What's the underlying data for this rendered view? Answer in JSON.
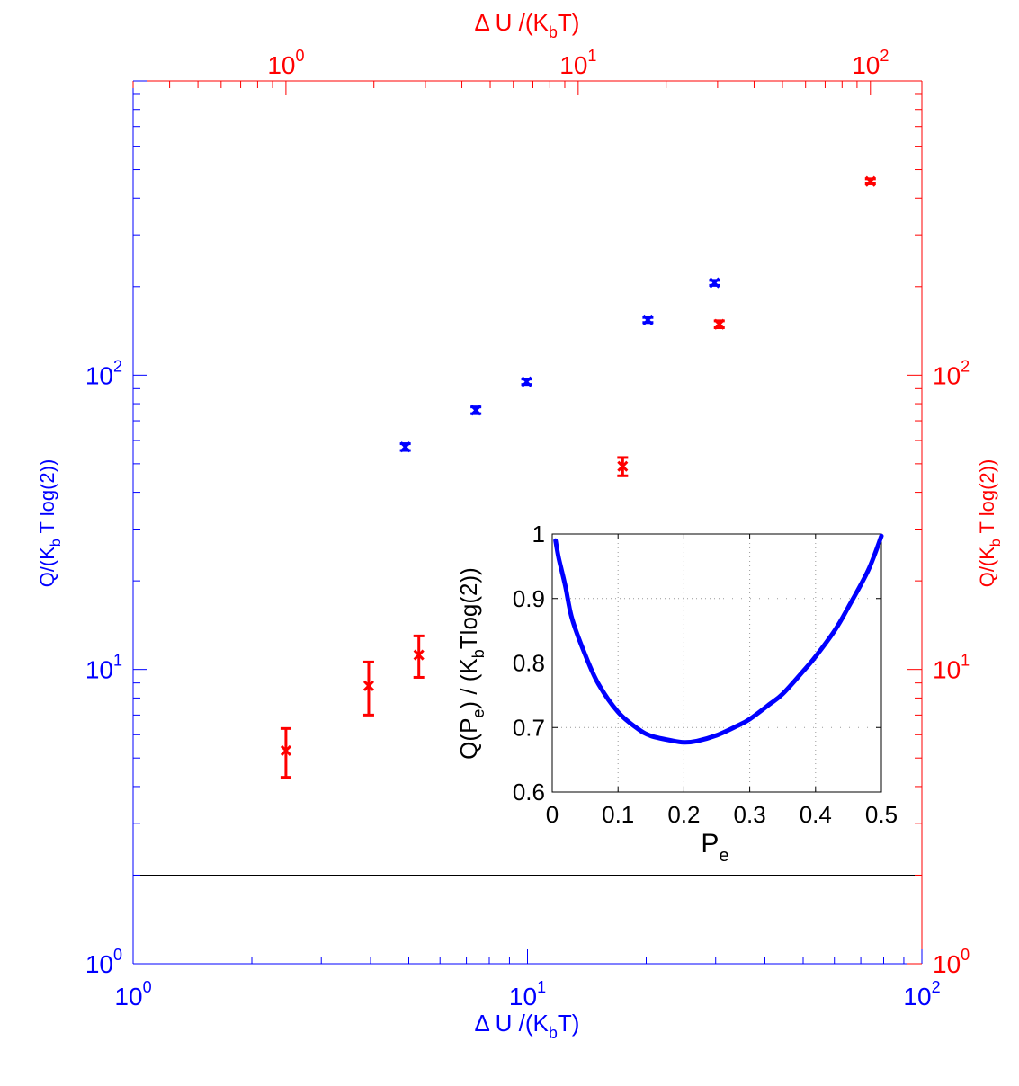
{
  "chart_data": [
    {
      "type": "scatter",
      "x_scale": "log",
      "y_scale": "log",
      "bottom_axis": {
        "label_base": "Δ U /(K",
        "label_sub": "b",
        "label_end": "T)",
        "range": [
          1,
          100
        ],
        "ticks": [
          {
            "base": "10",
            "exp": "0",
            "value": 1
          },
          {
            "base": "10",
            "exp": "1",
            "value": 10
          },
          {
            "base": "10",
            "exp": "2",
            "value": 100
          }
        ],
        "color": "#0000ff"
      },
      "top_axis": {
        "label_base": "Δ U /(K",
        "label_sub": "b",
        "label_end": "T)",
        "range": [
          0.3,
          150
        ],
        "ticks": [
          {
            "base": "10",
            "exp": "0",
            "value": 1
          },
          {
            "base": "10",
            "exp": "1",
            "value": 10
          },
          {
            "base": "10",
            "exp": "2",
            "value": 100
          }
        ],
        "color": "#ff0000"
      },
      "left_axis": {
        "label_base": "Q/(K",
        "label_sub": "b",
        "label_end": " T log(2))",
        "range": [
          1,
          1000
        ],
        "ticks": [
          {
            "base": "10",
            "exp": "0",
            "value": 1
          },
          {
            "base": "10",
            "exp": "1",
            "value": 10
          },
          {
            "base": "10",
            "exp": "2",
            "value": 100
          }
        ],
        "color": "#0000ff"
      },
      "right_axis": {
        "label_base": "Q/(K",
        "label_sub": "b",
        "label_end": " T log(2))",
        "range": [
          1,
          1000
        ],
        "ticks": [
          {
            "base": "10",
            "exp": "0",
            "value": 1
          },
          {
            "base": "10",
            "exp": "1",
            "value": 10
          },
          {
            "base": "10",
            "exp": "2",
            "value": 100
          }
        ],
        "color": "#ff0000"
      },
      "series": [
        {
          "axes": "bottom-left",
          "color": "#0000ff",
          "points": [
            {
              "x": 4.9,
              "y": 57,
              "err": 1.5
            },
            {
              "x": 7.4,
              "y": 76,
              "err": 2
            },
            {
              "x": 9.95,
              "y": 95,
              "err": 2
            },
            {
              "x": 20.2,
              "y": 154,
              "err": 3
            },
            {
              "x": 29.8,
              "y": 206,
              "err": 4
            }
          ]
        },
        {
          "axes": "top-left",
          "color": "#ff0000",
          "points": [
            {
              "x": 1.0,
              "y": 5.3,
              "err": 1.0
            },
            {
              "x": 1.92,
              "y": 8.8,
              "err": 1.8
            },
            {
              "x": 2.85,
              "y": 11.2,
              "err": 1.8
            },
            {
              "x": 14.2,
              "y": 49,
              "err": 3.5
            },
            {
              "x": 30.4,
              "y": 149,
              "err": 4
            },
            {
              "x": 100,
              "y": 456,
              "err": 9
            }
          ]
        }
      ],
      "reference_line_y": 2,
      "inset": {
        "type": "line",
        "xlabel_base": "P",
        "xlabel_sub": "e",
        "ylabel_q": "Q(P",
        "ylabel_sub1": "e",
        "ylabel_mid": ") / (K",
        "ylabel_sub2": "b",
        "ylabel_end": "Tlog(2))",
        "xlim": [
          0,
          0.5
        ],
        "ylim": [
          0.6,
          1.0
        ],
        "xticks": [
          "0",
          "0.1",
          "0.2",
          "0.3",
          "0.4",
          "0.5"
        ],
        "yticks": [
          "0.6",
          "0.7",
          "0.8",
          "0.9",
          "1"
        ],
        "grid": true,
        "color": "#0000ff",
        "curve": {
          "x": [
            0.005,
            0.01,
            0.02,
            0.03,
            0.05,
            0.07,
            0.1,
            0.13,
            0.15,
            0.18,
            0.2,
            0.22,
            0.25,
            0.28,
            0.3,
            0.33,
            0.35,
            0.38,
            0.4,
            0.43,
            0.45,
            0.48,
            0.5
          ],
          "y": [
            0.99,
            0.962,
            0.919,
            0.869,
            0.813,
            0.768,
            0.724,
            0.698,
            0.687,
            0.68,
            0.677,
            0.679,
            0.688,
            0.702,
            0.713,
            0.736,
            0.752,
            0.786,
            0.81,
            0.852,
            0.887,
            0.944,
            0.997
          ]
        }
      }
    }
  ]
}
